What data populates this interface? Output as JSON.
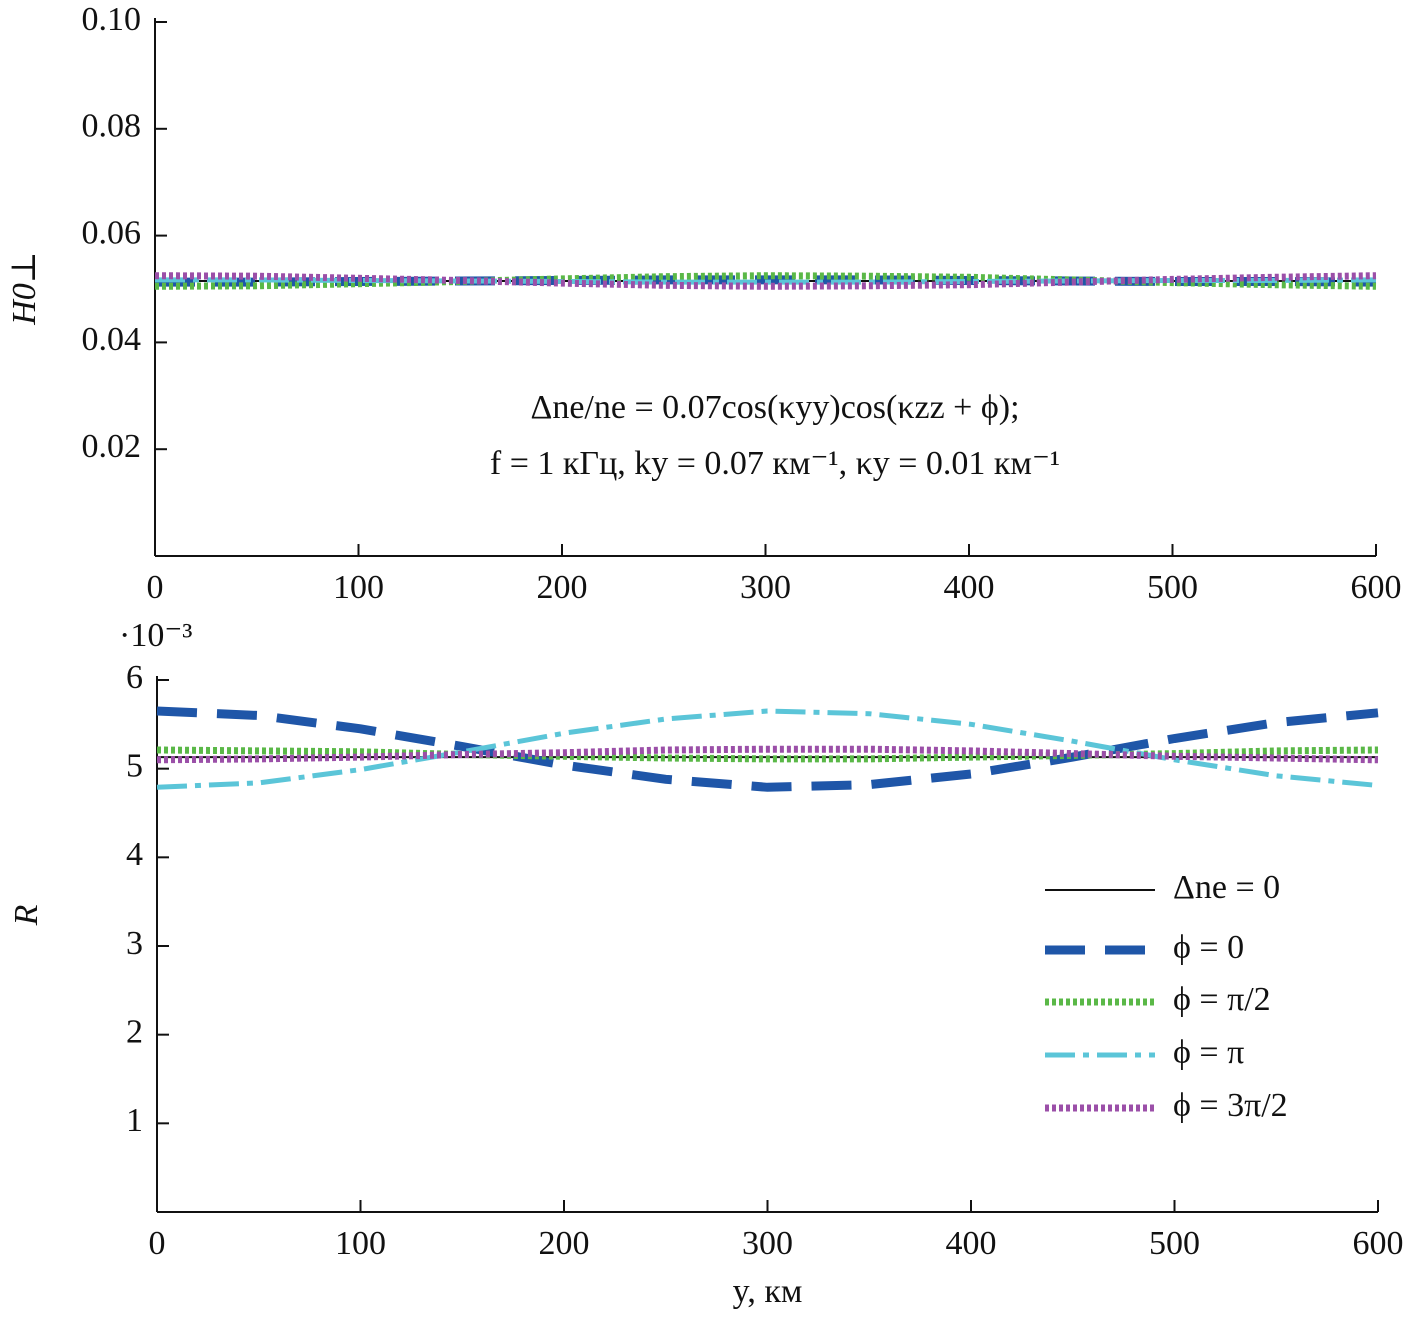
{
  "chart_data": [
    {
      "type": "line",
      "ylabel": "H0⊥",
      "annotation": [
        "Δne/ne = 0.07cos(κyy)cos(κzz + ϕ);",
        "f = 1 кГц, ky = 0.07 км⁻¹, κy = 0.01 км⁻¹"
      ],
      "x": [
        0,
        50,
        100,
        150,
        200,
        250,
        300,
        350,
        400,
        450,
        500,
        550,
        600
      ],
      "xlim": [
        0,
        600
      ],
      "xticks": [
        0,
        100,
        200,
        300,
        400,
        500,
        600
      ],
      "ylim": [
        0,
        0.1
      ],
      "yticks": [
        0.02,
        0.04,
        0.06,
        0.08,
        {
          "value": 0.1,
          "label": "0.10"
        }
      ],
      "series": [
        {
          "color": "#111111",
          "style": "solid",
          "values": [
            0.0515,
            0.0515,
            0.0515,
            0.0515,
            0.0515,
            0.0515,
            0.0515,
            0.0515,
            0.0515,
            0.0515,
            0.0515,
            0.0515,
            0.0515
          ]
        },
        {
          "color": "#1f56a8",
          "style": "dashed",
          "values": [
            0.0513,
            0.0513,
            0.0514,
            0.0515,
            0.0516,
            0.0517,
            0.0517,
            0.0517,
            0.0516,
            0.0515,
            0.0514,
            0.0514,
            0.0513
          ]
        },
        {
          "color": "#5ab847",
          "style": "dotted",
          "values": [
            0.0505,
            0.0506,
            0.051,
            0.0514,
            0.0519,
            0.0523,
            0.0525,
            0.0524,
            0.0522,
            0.0517,
            0.0512,
            0.0508,
            0.0505
          ]
        },
        {
          "color": "#5bc5d8",
          "style": "dashdot",
          "values": [
            0.0517,
            0.0517,
            0.0516,
            0.0515,
            0.0514,
            0.0513,
            0.0513,
            0.0513,
            0.0514,
            0.0515,
            0.0516,
            0.0516,
            0.0517
          ]
        },
        {
          "color": "#9b4fa8",
          "style": "dotted",
          "values": [
            0.0525,
            0.0524,
            0.052,
            0.0516,
            0.0511,
            0.0507,
            0.0505,
            0.0506,
            0.0508,
            0.0513,
            0.0518,
            0.0522,
            0.0525
          ]
        }
      ]
    },
    {
      "type": "line",
      "ylabel": "R",
      "xlabel": "y, км",
      "multiplier": "·10⁻³",
      "legend": "right",
      "x": [
        0,
        50,
        100,
        150,
        200,
        250,
        300,
        350,
        400,
        450,
        500,
        550,
        600
      ],
      "xlim": [
        0,
        600
      ],
      "xticks": [
        0,
        100,
        200,
        300,
        400,
        500,
        600
      ],
      "ylim": [
        0,
        6
      ],
      "yticks": [
        1,
        2,
        3,
        4,
        5,
        6
      ],
      "series": [
        {
          "name": "Δne = 0",
          "color": "#111111",
          "style": "solid",
          "values": [
            5.13,
            5.13,
            5.13,
            5.13,
            5.13,
            5.13,
            5.13,
            5.13,
            5.13,
            5.13,
            5.13,
            5.13,
            5.13
          ]
        },
        {
          "name": "ϕ = 0",
          "color": "#1f56a8",
          "style": "dashed",
          "values": [
            5.65,
            5.6,
            5.45,
            5.25,
            5.04,
            4.88,
            4.79,
            4.82,
            4.94,
            5.13,
            5.34,
            5.52,
            5.63
          ]
        },
        {
          "name": "ϕ = π/2",
          "color": "#5ab847",
          "style": "dotted",
          "values": [
            5.21,
            5.2,
            5.19,
            5.16,
            5.14,
            5.12,
            5.11,
            5.11,
            5.13,
            5.15,
            5.17,
            5.2,
            5.21
          ]
        },
        {
          "name": "ϕ = π",
          "color": "#5bc5d8",
          "style": "dashdot",
          "values": [
            4.79,
            4.84,
            4.99,
            5.19,
            5.4,
            5.56,
            5.65,
            5.62,
            5.5,
            5.31,
            5.1,
            4.92,
            4.81
          ]
        },
        {
          "name": "ϕ = 3π/2",
          "color": "#9b4fa8",
          "style": "dotted",
          "values": [
            5.1,
            5.11,
            5.13,
            5.16,
            5.18,
            5.21,
            5.22,
            5.22,
            5.2,
            5.17,
            5.14,
            5.12,
            5.1
          ]
        }
      ]
    }
  ]
}
